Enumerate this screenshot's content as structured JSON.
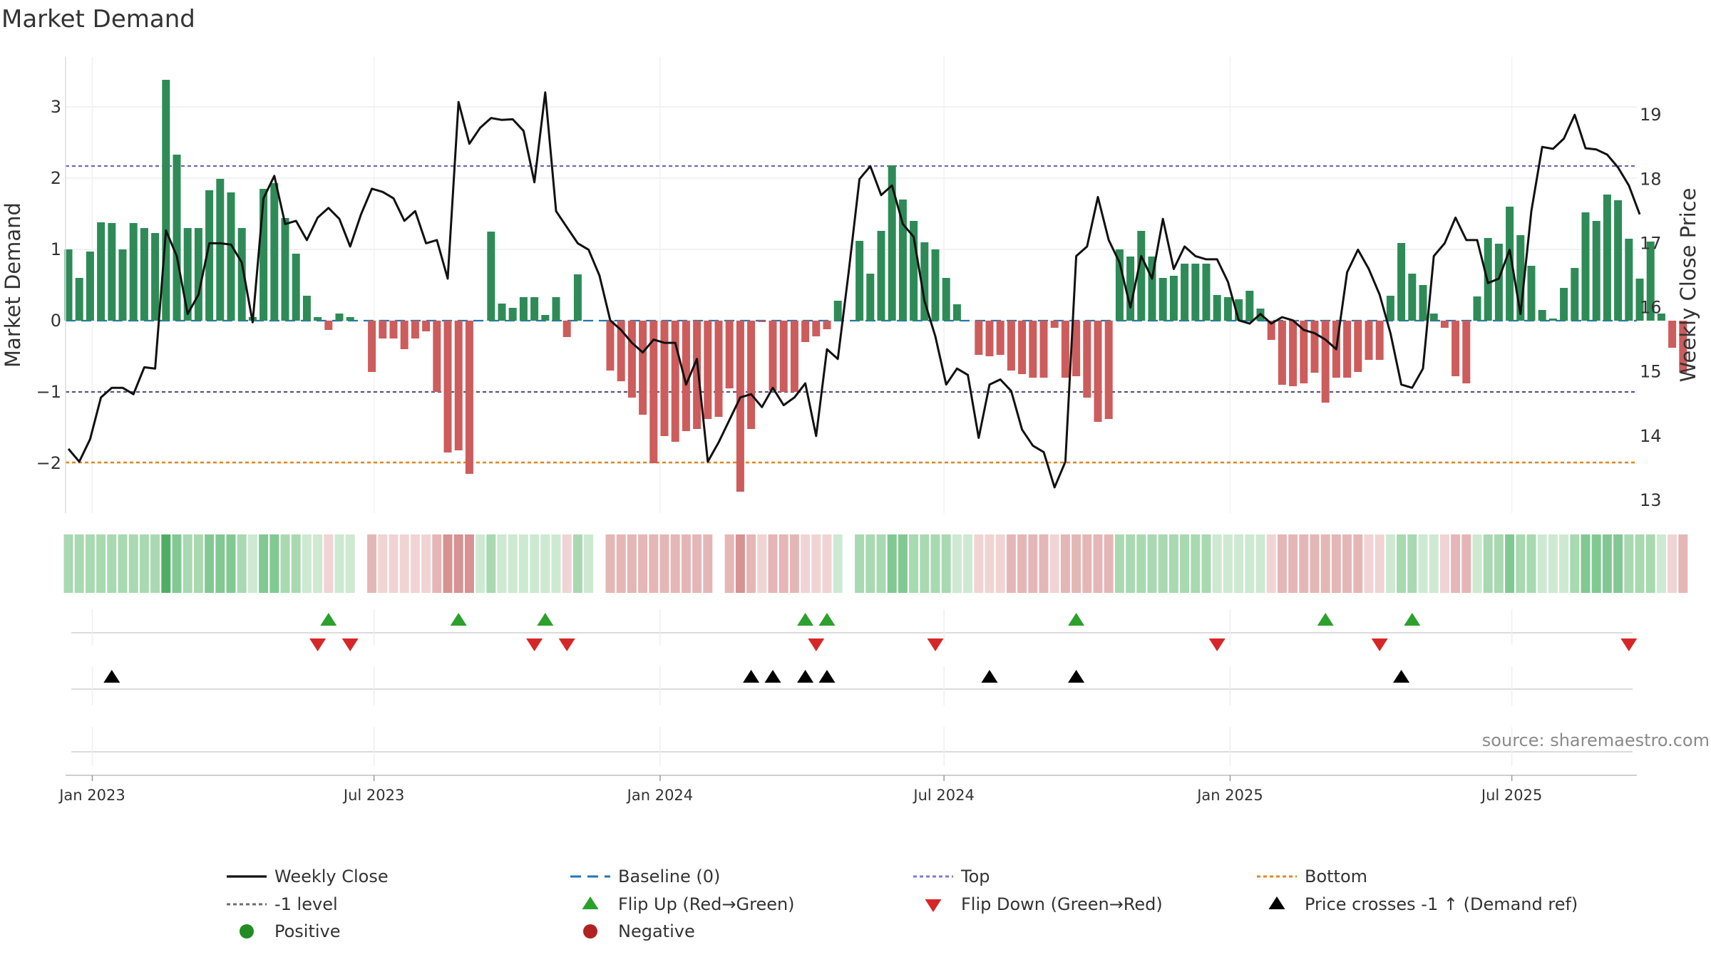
{
  "chart_data": {
    "type": "bar",
    "title": "Market Demand",
    "ylabel_left": "Market Demand",
    "ylabel_right": "Weekly Close Price",
    "ylim_left": [
      -2.7,
      3.7
    ],
    "ylim_right": [
      12.8,
      19.9
    ],
    "yticks_left": [
      {
        "value": 3,
        "label": "3"
      },
      {
        "value": 2,
        "label": "2"
      },
      {
        "value": 1,
        "label": "1"
      },
      {
        "value": 0,
        "label": "0"
      },
      {
        "value": -1,
        "label": "−1"
      },
      {
        "value": -2,
        "label": "−2"
      }
    ],
    "yticks_right": [
      {
        "value": 19,
        "label": "19"
      },
      {
        "value": 18,
        "label": "18"
      },
      {
        "value": 17,
        "label": "17"
      },
      {
        "value": 16,
        "label": "16"
      },
      {
        "value": 15,
        "label": "15"
      },
      {
        "value": 14,
        "label": "14"
      },
      {
        "value": 13,
        "label": "13"
      }
    ],
    "xticks": [
      {
        "index": 2.2,
        "label": "Jan 2023"
      },
      {
        "index": 28.2,
        "label": "Jul 2023"
      },
      {
        "index": 54.6,
        "label": "Jan 2024"
      },
      {
        "index": 80.8,
        "label": "Jul 2024"
      },
      {
        "index": 107.2,
        "label": "Jan 2025"
      },
      {
        "index": 133.2,
        "label": "Jul 2025"
      }
    ],
    "num_weeks": 145,
    "reference_lines": {
      "top": 2.17,
      "minus_one": -1.0,
      "bottom": -1.99,
      "baseline": 0
    },
    "demand": [
      1.0,
      0.6,
      0.97,
      1.38,
      1.37,
      1.0,
      1.37,
      1.3,
      1.23,
      3.38,
      2.33,
      1.3,
      1.3,
      1.83,
      1.99,
      1.8,
      1.3,
      0.05,
      1.85,
      1.93,
      1.44,
      0.94,
      0.35,
      0.05,
      -0.13,
      0.1,
      0.05,
      0,
      -0.72,
      -0.25,
      -0.25,
      -0.4,
      -0.25,
      -0.15,
      -1.0,
      -1.85,
      -1.82,
      -2.15,
      0,
      1.25,
      0.24,
      0.18,
      0.33,
      0.33,
      0.08,
      0.33,
      -0.23,
      0.65,
      0,
      0,
      -0.7,
      -0.85,
      -1.08,
      -1.32,
      -2.0,
      -1.62,
      -1.7,
      -1.55,
      -1.52,
      -1.38,
      -1.35,
      -0.95,
      -2.4,
      -1.52,
      -0.02,
      -0.98,
      -1.0,
      -1.0,
      -0.3,
      -0.22,
      -0.12,
      0.28,
      0,
      1.12,
      0.66,
      1.26,
      2.18,
      1.7,
      1.4,
      1.1,
      1.0,
      0.6,
      0.23,
      0,
      -0.48,
      -0.5,
      -0.48,
      -0.7,
      -0.75,
      -0.8,
      -0.8,
      -0.1,
      -0.8,
      -0.78,
      -1.08,
      -1.42,
      -1.38,
      1.0,
      0.9,
      1.26,
      0.9,
      0.6,
      0.63,
      0.8,
      0.8,
      0.8,
      0.36,
      0.33,
      0.3,
      0.42,
      0.17,
      -0.27,
      -0.9,
      -0.92,
      -0.88,
      -0.73,
      -1.15,
      -0.8,
      -0.8,
      -0.72,
      -0.55,
      -0.55,
      0.35,
      1.09,
      0.66,
      0.5,
      0.1,
      -0.1,
      -0.78,
      -0.88,
      0.34,
      1.16,
      1.08,
      1.6,
      1.2,
      0.77,
      0.15,
      0.03,
      0.46,
      0.74,
      1.52,
      1.4,
      1.77,
      1.69,
      1.15,
      0.59,
      1.11,
      0.1,
      -0.38,
      -0.73
    ],
    "price": [
      13.8,
      13.6,
      13.95,
      14.6,
      14.75,
      14.75,
      14.65,
      15.07,
      15.05,
      17.2,
      16.8,
      15.9,
      16.2,
      17.0,
      17.0,
      16.98,
      16.7,
      15.77,
      17.7,
      18.05,
      17.3,
      17.35,
      17.05,
      17.4,
      17.55,
      17.38,
      16.95,
      17.45,
      17.85,
      17.8,
      17.7,
      17.35,
      17.5,
      17.0,
      17.05,
      16.45,
      19.2,
      18.55,
      18.8,
      18.95,
      18.92,
      18.93,
      18.75,
      17.95,
      19.35,
      17.5,
      17.25,
      17.0,
      16.9,
      16.5,
      15.8,
      15.65,
      15.45,
      15.3,
      15.5,
      15.45,
      15.45,
      14.8,
      15.2,
      13.6,
      13.9,
      14.25,
      14.6,
      14.65,
      14.45,
      14.75,
      14.48,
      14.6,
      14.82,
      14.0,
      15.35,
      15.2,
      16.55,
      18.0,
      18.2,
      17.75,
      17.9,
      17.3,
      17.1,
      16.1,
      15.55,
      14.8,
      15.05,
      14.95,
      13.97,
      14.8,
      14.88,
      14.7,
      14.1,
      13.85,
      13.75,
      13.2,
      13.6,
      16.8,
      16.95,
      17.72,
      17.05,
      16.7,
      16.0,
      16.8,
      16.45,
      17.38,
      16.6,
      16.95,
      16.8,
      16.75,
      16.75,
      16.4,
      15.8,
      15.75,
      15.9,
      15.75,
      15.85,
      15.8,
      15.65,
      15.6,
      15.5,
      15.35,
      16.55,
      16.9,
      16.6,
      16.2,
      15.6,
      14.8,
      14.75,
      15.05,
      16.8,
      17.0,
      17.4,
      17.05,
      17.05,
      16.38,
      16.45,
      16.9,
      15.9,
      17.5,
      18.5,
      18.47,
      18.63,
      19.0,
      18.48,
      18.46,
      18.38,
      18.18,
      17.9,
      17.45
    ],
    "color_strip_levels": [
      1,
      1,
      1,
      1,
      1,
      1,
      1,
      1,
      1,
      3,
      2,
      1,
      1,
      2,
      2,
      2,
      1,
      0,
      2,
      2,
      1,
      1,
      0,
      0,
      0,
      0,
      0,
      0,
      1,
      0,
      0,
      0,
      0,
      0,
      1,
      2,
      2,
      2,
      0,
      1,
      0,
      0,
      0,
      0,
      0,
      0,
      0,
      1,
      0,
      0,
      1,
      1,
      1,
      1,
      1,
      1,
      1,
      1,
      1,
      1,
      1,
      1,
      2,
      1,
      0,
      1,
      1,
      1,
      0,
      0,
      0,
      0,
      0,
      1,
      1,
      1,
      2,
      2,
      1,
      1,
      1,
      1,
      0,
      0,
      0,
      0,
      0,
      1,
      1,
      1,
      1,
      0,
      1,
      1,
      1,
      1,
      1,
      1,
      1,
      1,
      1,
      1,
      1,
      1,
      1,
      1,
      0,
      0,
      0,
      0,
      0,
      0,
      1,
      1,
      1,
      1,
      1,
      1,
      1,
      1,
      0,
      0,
      0,
      1,
      1,
      0,
      0,
      0,
      1,
      1,
      0,
      1,
      1,
      2,
      1,
      1,
      0,
      0,
      0,
      1,
      2,
      2,
      2,
      2,
      1,
      1,
      1,
      0,
      0,
      1
    ],
    "color_strip_gaps": [
      27,
      49,
      60,
      72
    ],
    "flip_up_weeks": [
      24,
      36,
      44,
      68,
      70,
      93,
      116,
      124
    ],
    "flip_down_weeks": [
      23,
      26,
      43,
      46,
      69,
      80,
      106,
      121,
      144
    ],
    "price_cross_weeks": [
      4,
      63,
      65,
      68,
      70,
      85,
      93,
      123
    ],
    "legend": [
      {
        "key": "weekly_close",
        "label": "Weekly Close",
        "color": "#111111"
      },
      {
        "key": "baseline",
        "label": "Baseline (0)",
        "color": "#1f77b4"
      },
      {
        "key": "top",
        "label": "Top",
        "color": "#7b7bd8"
      },
      {
        "key": "bottom",
        "label": "Bottom",
        "color": "#e0891f"
      },
      {
        "key": "minus_one",
        "label": "-1 level",
        "color": "#6e6e6e"
      },
      {
        "key": "flip_up",
        "label": "Flip Up (Red→Green)",
        "color": "#2ca02c"
      },
      {
        "key": "flip_down",
        "label": "Flip Down (Green→Red)",
        "color": "#d62728"
      },
      {
        "key": "price_cross",
        "label": "Price crosses -1 ↑ (Demand ref)",
        "color": "#000000"
      },
      {
        "key": "positive",
        "label": "Positive",
        "color": "#228b22"
      },
      {
        "key": "negative",
        "label": "Negative",
        "color": "#b22222"
      }
    ],
    "source": "source: sharemaestro.com",
    "colors": {
      "positive_bar": "#2e8b57",
      "negative_bar": "#cd5c5c",
      "price_line": "#111111",
      "grid": "#eeeeee"
    }
  }
}
